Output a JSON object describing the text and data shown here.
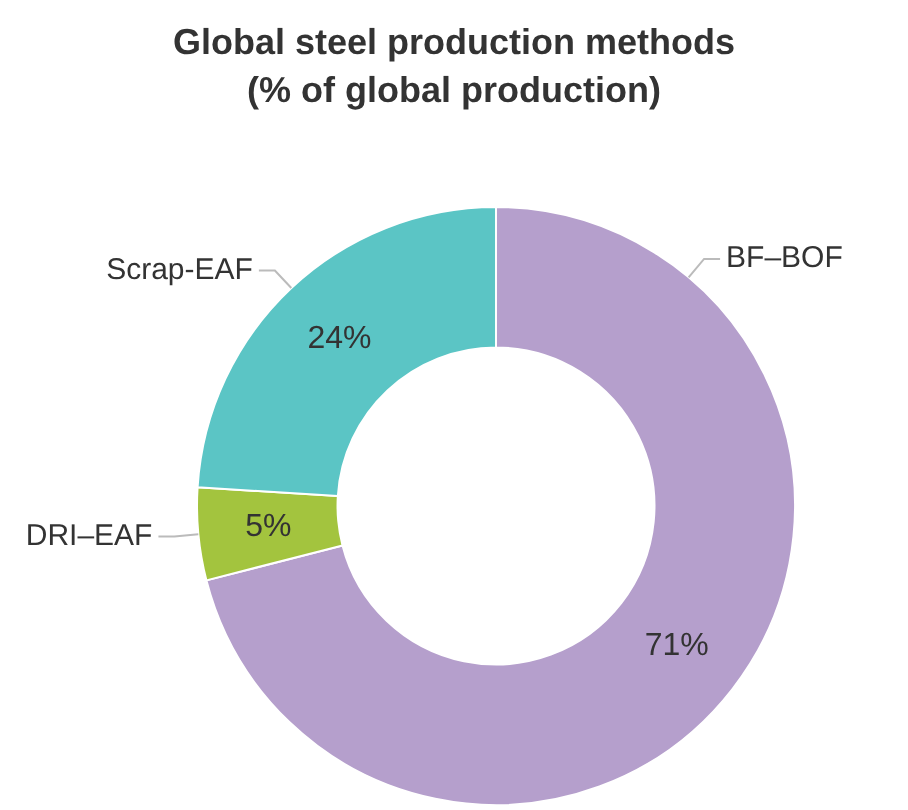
{
  "chart_data": {
    "type": "donut",
    "title": "Global steel production methods\n(% of global production)",
    "categories": [
      "BF–BOF",
      "DRI–EAF",
      "Scrap-EAF"
    ],
    "values": [
      71,
      5,
      24
    ],
    "colors": [
      "#b59fcc",
      "#a3c43e",
      "#5bc5c5"
    ],
    "value_labels": [
      "71%",
      "5%",
      "24%"
    ],
    "legend": false
  }
}
